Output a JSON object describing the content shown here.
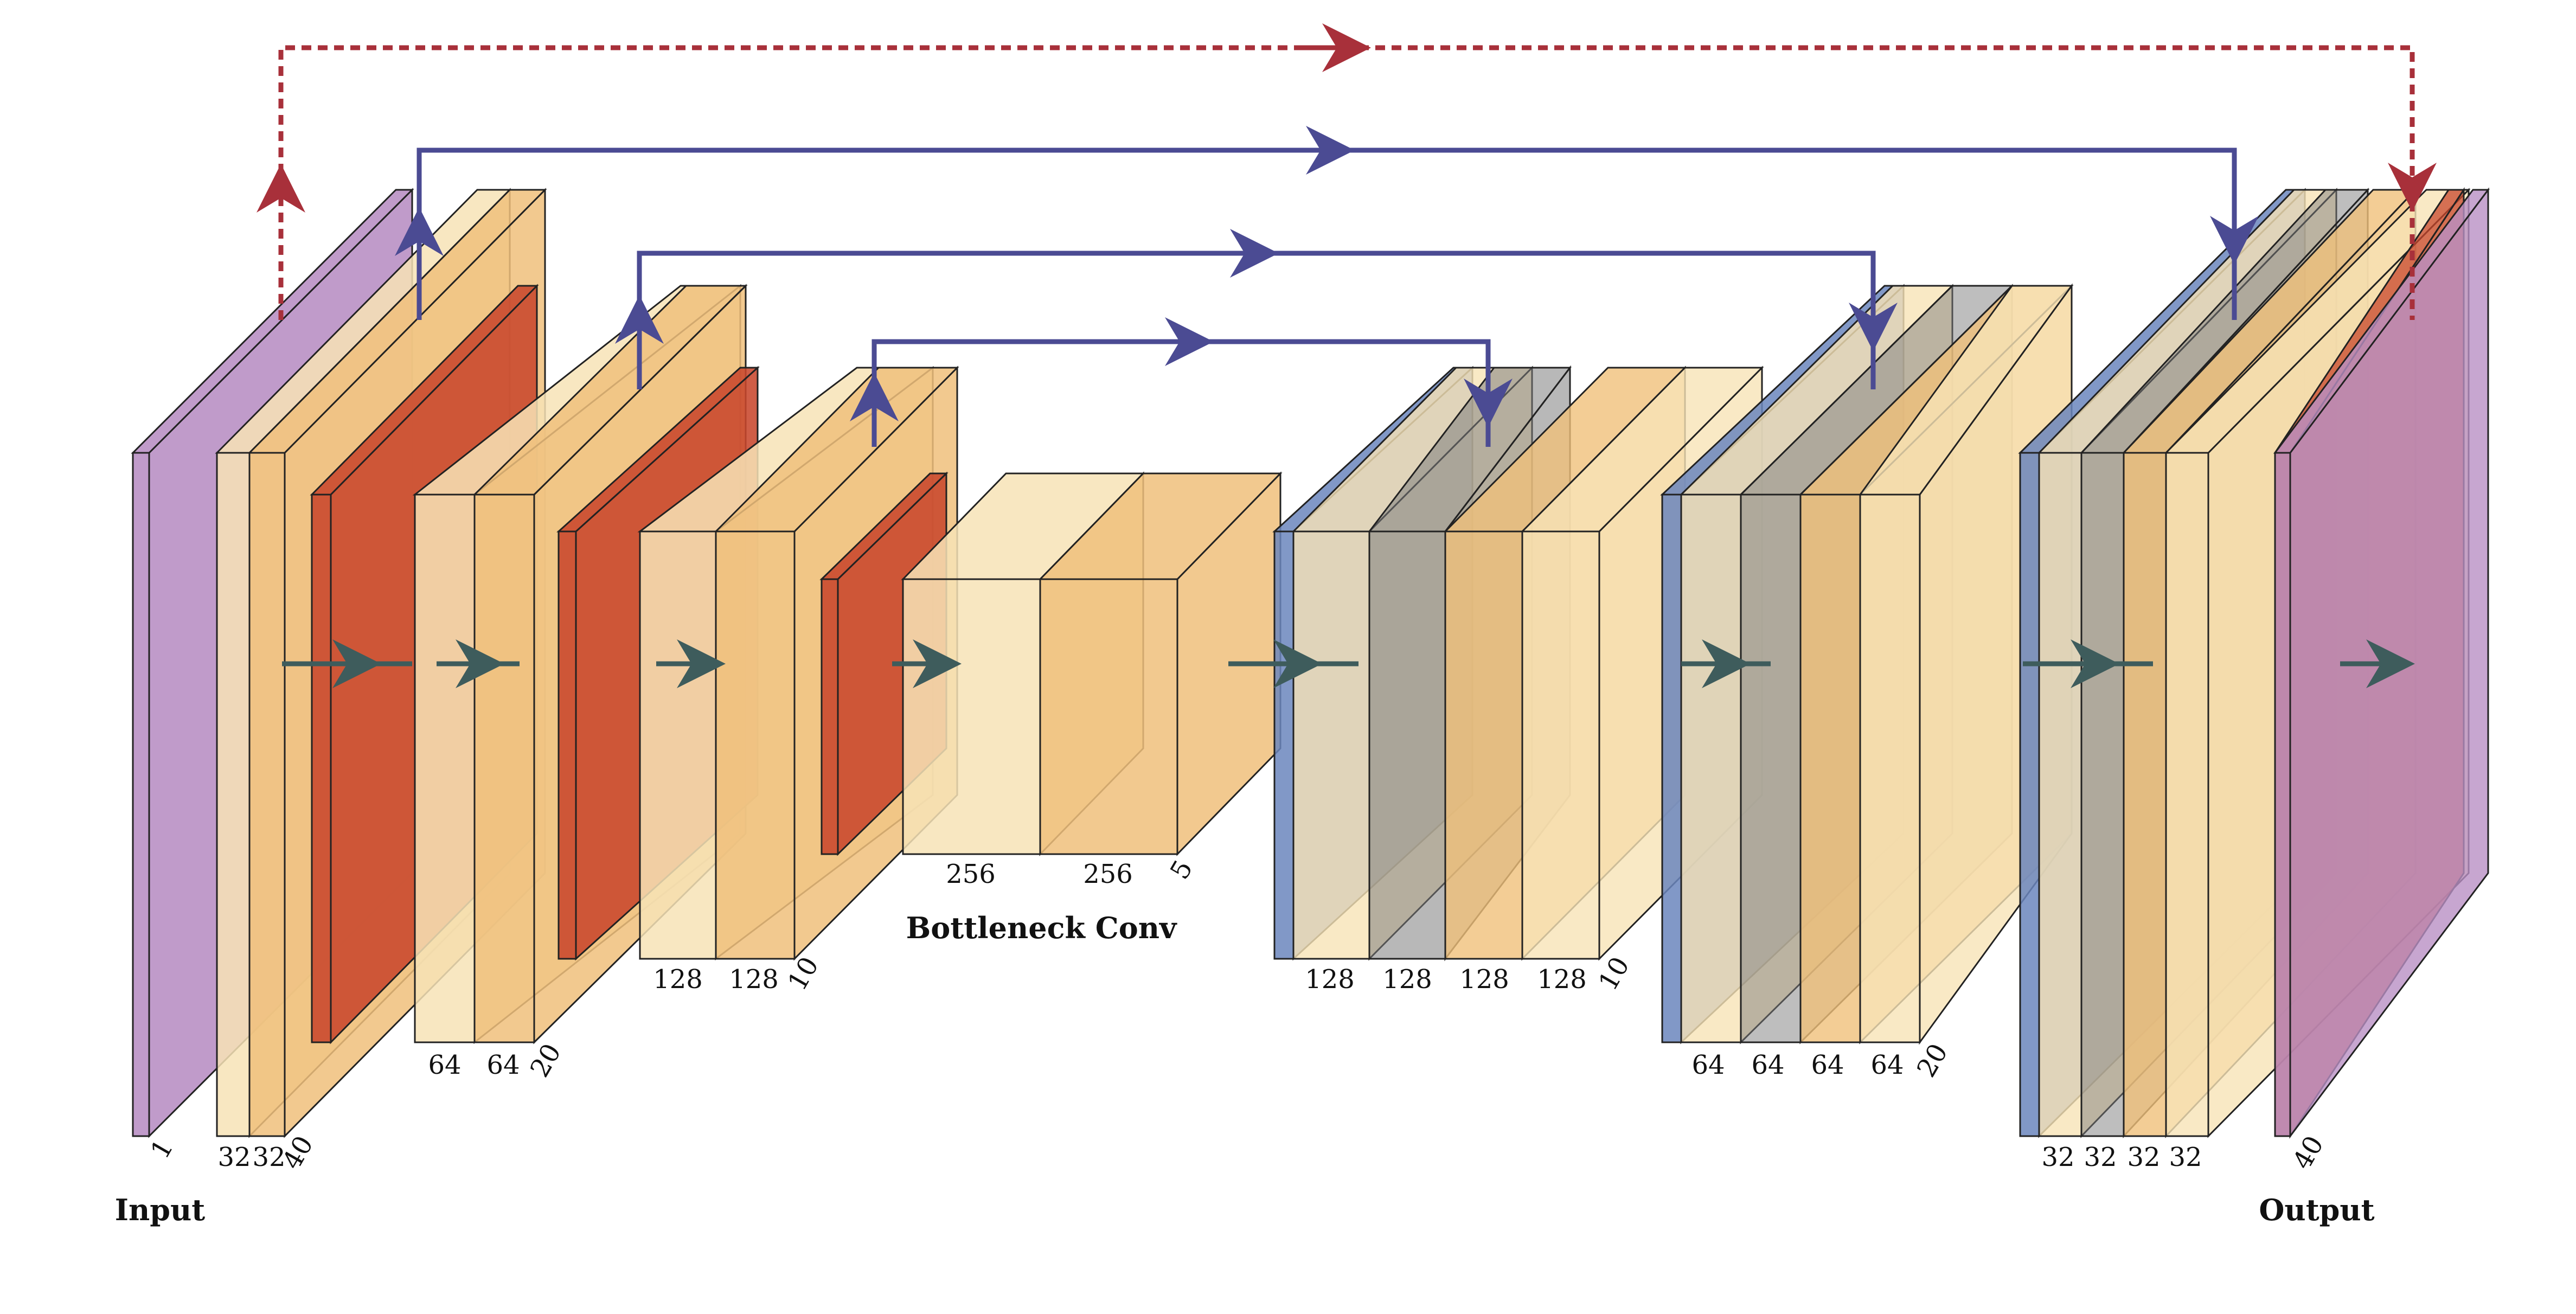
{
  "captions": {
    "input": "Input",
    "bottleneck": "Bottleneck Conv",
    "output": "Output"
  },
  "colors": {
    "input_plane": "#b990c4",
    "conv_light": "#f7e3b6",
    "conv_mid": "#f0c07b",
    "conv_band": "#eab060",
    "pool": "#c8472c",
    "concat": "#6b86bd",
    "unpool": "#7d7d7d",
    "skip_arrow": "#4b4b93",
    "residual_arrow": "#a8303a",
    "flow_arrow": "#3e5c5c"
  },
  "layers": {
    "input": {
      "depth": "1"
    },
    "enc1": {
      "w1": "32",
      "w2": "32",
      "depth": "40"
    },
    "enc2": {
      "w1": "64",
      "w2": "64",
      "depth": "20"
    },
    "enc3": {
      "w1": "128",
      "w2": "128",
      "depth": "10"
    },
    "bottleneck": {
      "w1": "256",
      "w2": "256",
      "depth": "5"
    },
    "dec3": {
      "w1": "128",
      "w2": "128",
      "w3": "128",
      "w4": "128",
      "depth": "10"
    },
    "dec2": {
      "w1": "64",
      "w2": "64",
      "w3": "64",
      "w4": "64",
      "depth": "20"
    },
    "dec1": {
      "w1": "32",
      "w2": "32",
      "w3": "32",
      "w4": "32"
    },
    "output": {
      "depth": "40"
    }
  }
}
